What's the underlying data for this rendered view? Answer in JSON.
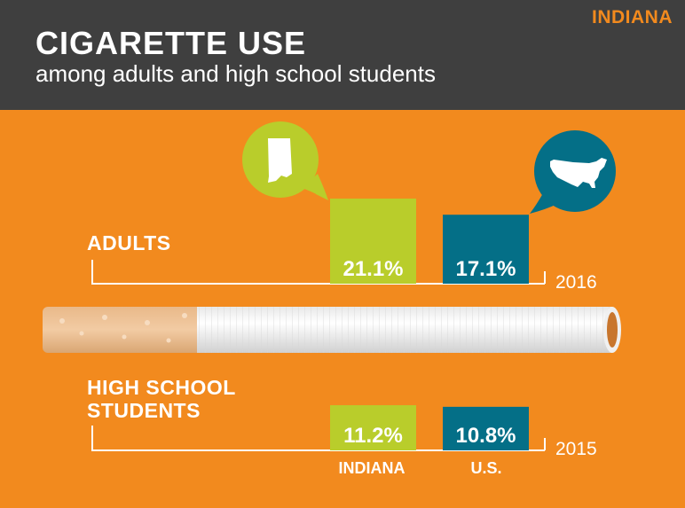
{
  "header": {
    "state": "INDIANA",
    "title": "CIGARETTE USE",
    "subtitle": "among adults and high school students"
  },
  "colors": {
    "background": "#f28a1e",
    "header": "#3f3f3f",
    "indiana": "#b9cd2b",
    "us": "#046f87",
    "text": "#ffffff"
  },
  "icons": {
    "indiana": "indiana-map-icon",
    "us": "us-map-icon",
    "divider": "cigarette-icon"
  },
  "chart_data": {
    "type": "bar",
    "categories": [
      "INDIANA",
      "U.S."
    ],
    "series": [
      {
        "name": "ADULTS",
        "year": "2016",
        "values": [
          21.1,
          17.1
        ],
        "labels": [
          "21.1%",
          "17.1%"
        ]
      },
      {
        "name": "HIGH SCHOOL STUDENTS",
        "year": "2015",
        "values": [
          11.2,
          10.8
        ],
        "labels": [
          "11.2%",
          "10.8%"
        ]
      }
    ],
    "legend_labels": [
      "INDIANA",
      "U.S."
    ],
    "unit": "%"
  }
}
